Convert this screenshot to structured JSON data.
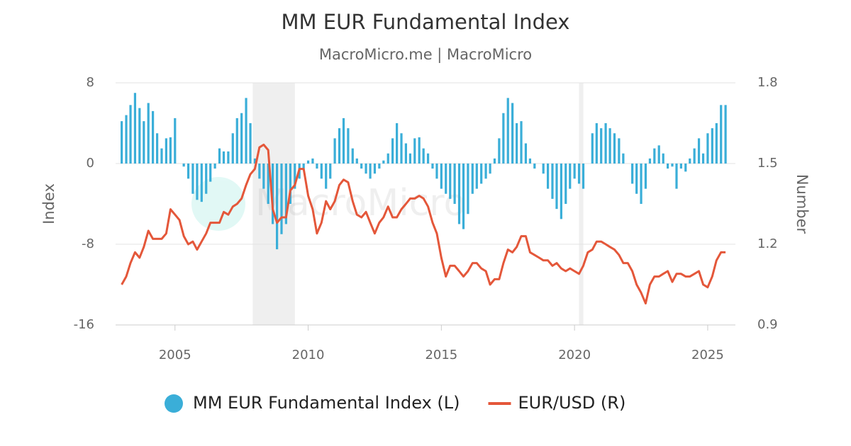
{
  "chart_data": {
    "type": "bar-line",
    "title": "MM EUR Fundamental Index",
    "subtitle": "MacroMicro.me | MacroMicro",
    "watermark": "MacroMicro",
    "ylabel": "Index",
    "y2label": "Number",
    "xlim": [
      2002.77,
      2026.04
    ],
    "xticks": [
      2005,
      2010,
      2015,
      2020,
      2025
    ],
    "ylim": [
      -16,
      8
    ],
    "yticks": [
      -16,
      -8,
      0,
      8
    ],
    "y2lim": [
      0.9,
      1.8
    ],
    "y2ticks": [
      0.9,
      1.2,
      1.5,
      1.8
    ],
    "grid": true,
    "legend": "bottom",
    "shaded_periods": [
      [
        2007.92,
        2009.5
      ],
      [
        2020.17,
        2020.33
      ]
    ],
    "x": [
      2003.0,
      2003.17,
      2003.33,
      2003.5,
      2003.67,
      2003.83,
      2004.0,
      2004.17,
      2004.33,
      2004.5,
      2004.67,
      2004.83,
      2005.0,
      2005.17,
      2005.33,
      2005.5,
      2005.67,
      2005.83,
      2006.0,
      2006.17,
      2006.33,
      2006.5,
      2006.67,
      2006.83,
      2007.0,
      2007.17,
      2007.33,
      2007.5,
      2007.67,
      2007.83,
      2008.0,
      2008.17,
      2008.33,
      2008.5,
      2008.67,
      2008.83,
      2009.0,
      2009.17,
      2009.33,
      2009.5,
      2009.67,
      2009.83,
      2010.0,
      2010.17,
      2010.33,
      2010.5,
      2010.67,
      2010.83,
      2011.0,
      2011.17,
      2011.33,
      2011.5,
      2011.67,
      2011.83,
      2012.0,
      2012.17,
      2012.33,
      2012.5,
      2012.67,
      2012.83,
      2013.0,
      2013.17,
      2013.33,
      2013.5,
      2013.67,
      2013.83,
      2014.0,
      2014.17,
      2014.33,
      2014.5,
      2014.67,
      2014.83,
      2015.0,
      2015.17,
      2015.33,
      2015.5,
      2015.67,
      2015.83,
      2016.0,
      2016.17,
      2016.33,
      2016.5,
      2016.67,
      2016.83,
      2017.0,
      2017.17,
      2017.33,
      2017.5,
      2017.67,
      2017.83,
      2018.0,
      2018.17,
      2018.33,
      2018.5,
      2018.67,
      2018.83,
      2019.0,
      2019.17,
      2019.33,
      2019.5,
      2019.67,
      2019.83,
      2020.0,
      2020.17,
      2020.33,
      2020.5,
      2020.67,
      2020.83,
      2021.0,
      2021.17,
      2021.33,
      2021.5,
      2021.67,
      2021.83,
      2022.0,
      2022.17,
      2022.33,
      2022.5,
      2022.67,
      2022.83,
      2023.0,
      2023.17,
      2023.33,
      2023.5,
      2023.67,
      2023.83,
      2024.0,
      2024.17,
      2024.33,
      2024.5,
      2024.67,
      2024.83,
      2025.0,
      2025.17,
      2025.33,
      2025.5,
      2025.67
    ],
    "series": [
      {
        "name": "MM EUR Fundamental Index (L)",
        "type": "bar",
        "color": "#3aaed8",
        "values": [
          4.2,
          4.8,
          5.8,
          7.0,
          5.5,
          4.2,
          6.0,
          5.2,
          3.0,
          1.5,
          2.5,
          2.6,
          4.5,
          0.0,
          -0.3,
          -1.5,
          -3.0,
          -3.6,
          -3.8,
          -3.0,
          -1.8,
          -0.5,
          1.5,
          1.2,
          1.2,
          3.0,
          4.5,
          5.0,
          6.5,
          4.0,
          0.5,
          -1.5,
          -2.5,
          -4.0,
          -6.0,
          -8.5,
          -7.0,
          -6.0,
          -4.0,
          -2.5,
          -1.5,
          -0.5,
          0.3,
          0.5,
          -0.5,
          -1.5,
          -2.5,
          -1.5,
          2.5,
          3.5,
          4.5,
          3.5,
          1.5,
          0.5,
          -0.5,
          -1.0,
          -1.5,
          -1.0,
          -0.5,
          0.3,
          1.0,
          2.5,
          4.0,
          3.0,
          2.0,
          1.0,
          2.5,
          2.6,
          1.5,
          1.0,
          -0.5,
          -1.5,
          -2.5,
          -3.0,
          -3.5,
          -4.0,
          -6.0,
          -6.5,
          -5.0,
          -3.0,
          -2.5,
          -2.0,
          -1.5,
          -1.0,
          0.5,
          2.5,
          5.0,
          6.5,
          6.0,
          4.0,
          4.2,
          2.0,
          0.5,
          -0.5,
          0.0,
          -1.0,
          -2.5,
          -3.5,
          -4.5,
          -5.5,
          -4.0,
          -2.5,
          -1.5,
          -2.0,
          -2.5,
          0.0,
          3.0,
          4.0,
          3.5,
          4.0,
          3.5,
          3.0,
          2.5,
          1.0,
          0.0,
          -2.0,
          -3.0,
          -4.0,
          -2.5,
          0.5,
          1.5,
          1.8,
          1.0,
          -0.5,
          -0.3,
          -2.5,
          -0.5,
          -0.8,
          0.5,
          1.5,
          2.5,
          1.0,
          3.0,
          3.5,
          4.0,
          5.8,
          5.8
        ]
      },
      {
        "name": "EUR/USD (R)",
        "type": "line",
        "axis": "y2",
        "color": "#e4573a",
        "values": [
          1.05,
          1.08,
          1.13,
          1.17,
          1.15,
          1.19,
          1.25,
          1.22,
          1.22,
          1.22,
          1.24,
          1.33,
          1.31,
          1.29,
          1.23,
          1.2,
          1.21,
          1.18,
          1.21,
          1.24,
          1.28,
          1.28,
          1.28,
          1.32,
          1.31,
          1.34,
          1.35,
          1.37,
          1.42,
          1.46,
          1.48,
          1.56,
          1.57,
          1.55,
          1.33,
          1.28,
          1.3,
          1.3,
          1.4,
          1.42,
          1.48,
          1.48,
          1.38,
          1.33,
          1.24,
          1.28,
          1.36,
          1.33,
          1.36,
          1.42,
          1.44,
          1.43,
          1.36,
          1.31,
          1.3,
          1.32,
          1.28,
          1.24,
          1.28,
          1.3,
          1.34,
          1.3,
          1.3,
          1.33,
          1.35,
          1.37,
          1.37,
          1.38,
          1.37,
          1.34,
          1.28,
          1.24,
          1.15,
          1.08,
          1.12,
          1.12,
          1.1,
          1.08,
          1.1,
          1.13,
          1.13,
          1.11,
          1.1,
          1.05,
          1.07,
          1.07,
          1.13,
          1.18,
          1.17,
          1.19,
          1.23,
          1.23,
          1.17,
          1.16,
          1.15,
          1.14,
          1.14,
          1.12,
          1.13,
          1.11,
          1.1,
          1.11,
          1.1,
          1.09,
          1.12,
          1.17,
          1.18,
          1.21,
          1.21,
          1.2,
          1.19,
          1.18,
          1.16,
          1.13,
          1.13,
          1.1,
          1.05,
          1.02,
          0.98,
          1.05,
          1.08,
          1.08,
          1.09,
          1.1,
          1.06,
          1.09,
          1.09,
          1.08,
          1.08,
          1.09,
          1.1,
          1.05,
          1.04,
          1.08,
          1.14,
          1.17,
          1.17
        ]
      }
    ]
  }
}
